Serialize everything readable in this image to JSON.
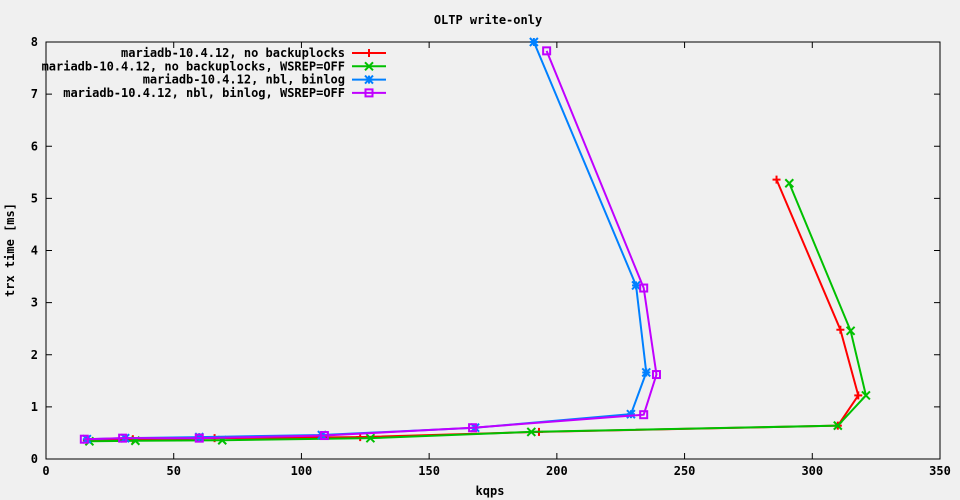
{
  "chart_data": {
    "type": "line",
    "title": "OLTP write-only",
    "xlabel": "kqps",
    "ylabel": "trx time [ms]",
    "xlim": [
      0,
      350
    ],
    "ylim": [
      0,
      8
    ],
    "xticks": [
      0,
      50,
      100,
      150,
      200,
      250,
      300,
      350
    ],
    "yticks": [
      0,
      1,
      2,
      3,
      4,
      5,
      6,
      7,
      8
    ],
    "grid": false,
    "legend_position": "top-left",
    "series": [
      {
        "name": "mariadb-10.4.12, no backuplocks",
        "color": "#ff0000",
        "marker": "plus",
        "x": [
          16,
          34,
          66,
          123,
          193,
          310,
          318,
          311,
          286
        ],
        "y": [
          0.36,
          0.38,
          0.4,
          0.42,
          0.52,
          0.64,
          1.22,
          2.48,
          5.36
        ]
      },
      {
        "name": "mariadb-10.4.12, no backuplocks, WSREP=OFF",
        "color": "#00c000",
        "marker": "cross",
        "x": [
          17,
          35,
          69,
          127,
          190,
          310,
          321,
          315,
          291
        ],
        "y": [
          0.34,
          0.35,
          0.36,
          0.4,
          0.52,
          0.64,
          1.22,
          2.46,
          5.29
        ]
      },
      {
        "name": "mariadb-10.4.12, nbl, binlog",
        "color": "#0080ff",
        "marker": "star",
        "x": [
          16,
          31,
          60,
          108,
          168,
          229,
          235,
          231,
          191
        ],
        "y": [
          0.38,
          0.4,
          0.42,
          0.46,
          0.6,
          0.86,
          1.66,
          3.33,
          8.0
        ]
      },
      {
        "name": "mariadb-10.4.12, nbl, binlog, WSREP=OFF",
        "color": "#c000ff",
        "marker": "box",
        "x": [
          15,
          30,
          60,
          109,
          167,
          234,
          239,
          234,
          196
        ],
        "y": [
          0.38,
          0.4,
          0.4,
          0.45,
          0.6,
          0.85,
          1.62,
          3.28,
          7.83
        ]
      }
    ]
  }
}
